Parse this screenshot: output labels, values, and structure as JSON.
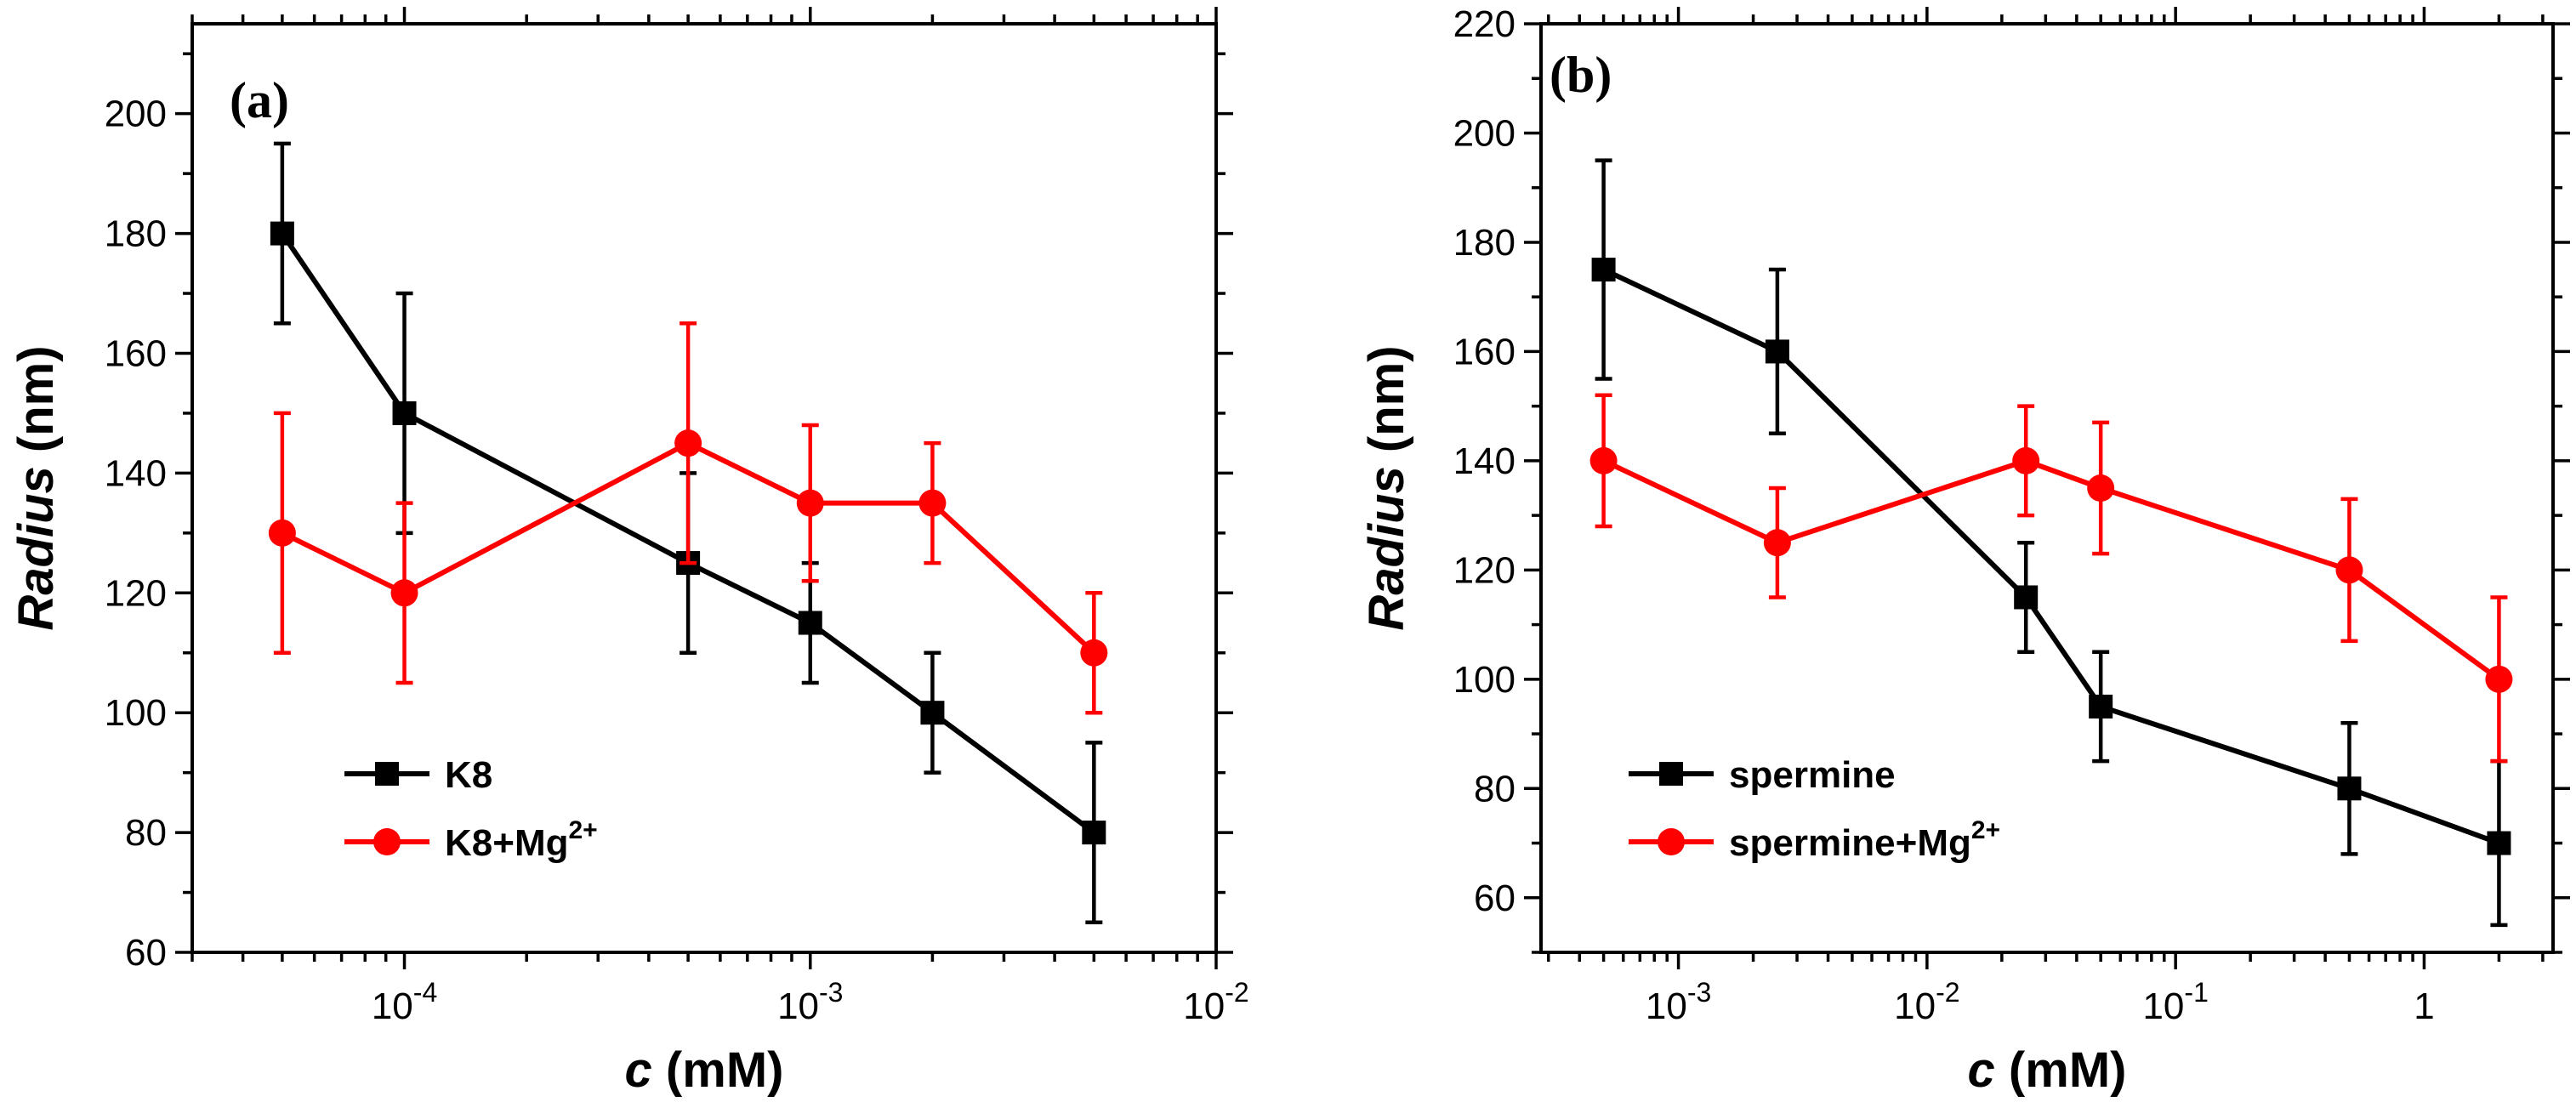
{
  "chart_data": [
    {
      "type": "line",
      "panel_label": "(a)",
      "xscale": "log",
      "xlim": [
        3e-05,
        0.01
      ],
      "ylim": [
        60,
        215
      ],
      "xlabel": {
        "var": "c",
        "unit": "(mM)"
      },
      "ylabel": {
        "var": "Radius",
        "unit": "(nm)"
      },
      "xticks": [
        {
          "value": 0.0001,
          "base": "10",
          "exp": "-4"
        },
        {
          "value": 0.001,
          "base": "10",
          "exp": "-3"
        },
        {
          "value": 0.01,
          "base": "10",
          "exp": "-2"
        }
      ],
      "yticks": [
        60,
        80,
        100,
        120,
        140,
        160,
        180,
        200
      ],
      "legend_position": "bottom-left",
      "series": [
        {
          "name": "K8",
          "legend_label": {
            "text": "K8",
            "sup": ""
          },
          "color": "#000000",
          "marker": "square",
          "x": [
            5e-05,
            0.0001,
            0.0005,
            0.001,
            0.002,
            0.005
          ],
          "y": [
            180,
            150,
            125,
            115,
            100,
            80
          ],
          "err": [
            15,
            20,
            15,
            10,
            10,
            15
          ]
        },
        {
          "name": "K8+Mg2+",
          "legend_label": {
            "text": "K8+Mg",
            "sup": "2+"
          },
          "color": "#ff0000",
          "marker": "circle",
          "x": [
            5e-05,
            0.0001,
            0.0005,
            0.001,
            0.002,
            0.005
          ],
          "y": [
            130,
            120,
            145,
            135,
            135,
            110
          ],
          "err": [
            20,
            15,
            20,
            13,
            10,
            10
          ]
        }
      ]
    },
    {
      "type": "line",
      "panel_label": "(b)",
      "xscale": "log",
      "xlim": [
        0.00028,
        3.3
      ],
      "ylim": [
        50,
        220
      ],
      "xlabel": {
        "var": "c",
        "unit": "(mM)"
      },
      "ylabel": {
        "var": "Radius",
        "unit": "(nm)"
      },
      "xticks": [
        {
          "value": 0.001,
          "base": "10",
          "exp": "-3"
        },
        {
          "value": 0.01,
          "base": "10",
          "exp": "-2"
        },
        {
          "value": 0.1,
          "base": "10",
          "exp": "-1"
        },
        {
          "value": 1,
          "base": "1",
          "exp": ""
        }
      ],
      "yticks": [
        60,
        80,
        100,
        120,
        140,
        160,
        180,
        200,
        220
      ],
      "legend_position": "bottom-left",
      "series": [
        {
          "name": "spermine",
          "legend_label": {
            "text": "spermine",
            "sup": ""
          },
          "color": "#000000",
          "marker": "square",
          "x": [
            0.0005,
            0.0025,
            0.025,
            0.05,
            0.5,
            2
          ],
          "y": [
            175,
            160,
            115,
            95,
            80,
            70
          ],
          "err": [
            20,
            15,
            10,
            10,
            12,
            15
          ]
        },
        {
          "name": "spermine+Mg2+",
          "legend_label": {
            "text": "spermine+Mg",
            "sup": "2+"
          },
          "color": "#ff0000",
          "marker": "circle",
          "x": [
            0.0005,
            0.0025,
            0.025,
            0.05,
            0.5,
            2
          ],
          "y": [
            140,
            125,
            140,
            135,
            120,
            100
          ],
          "err": [
            12,
            10,
            10,
            12,
            13,
            15
          ]
        }
      ]
    }
  ]
}
